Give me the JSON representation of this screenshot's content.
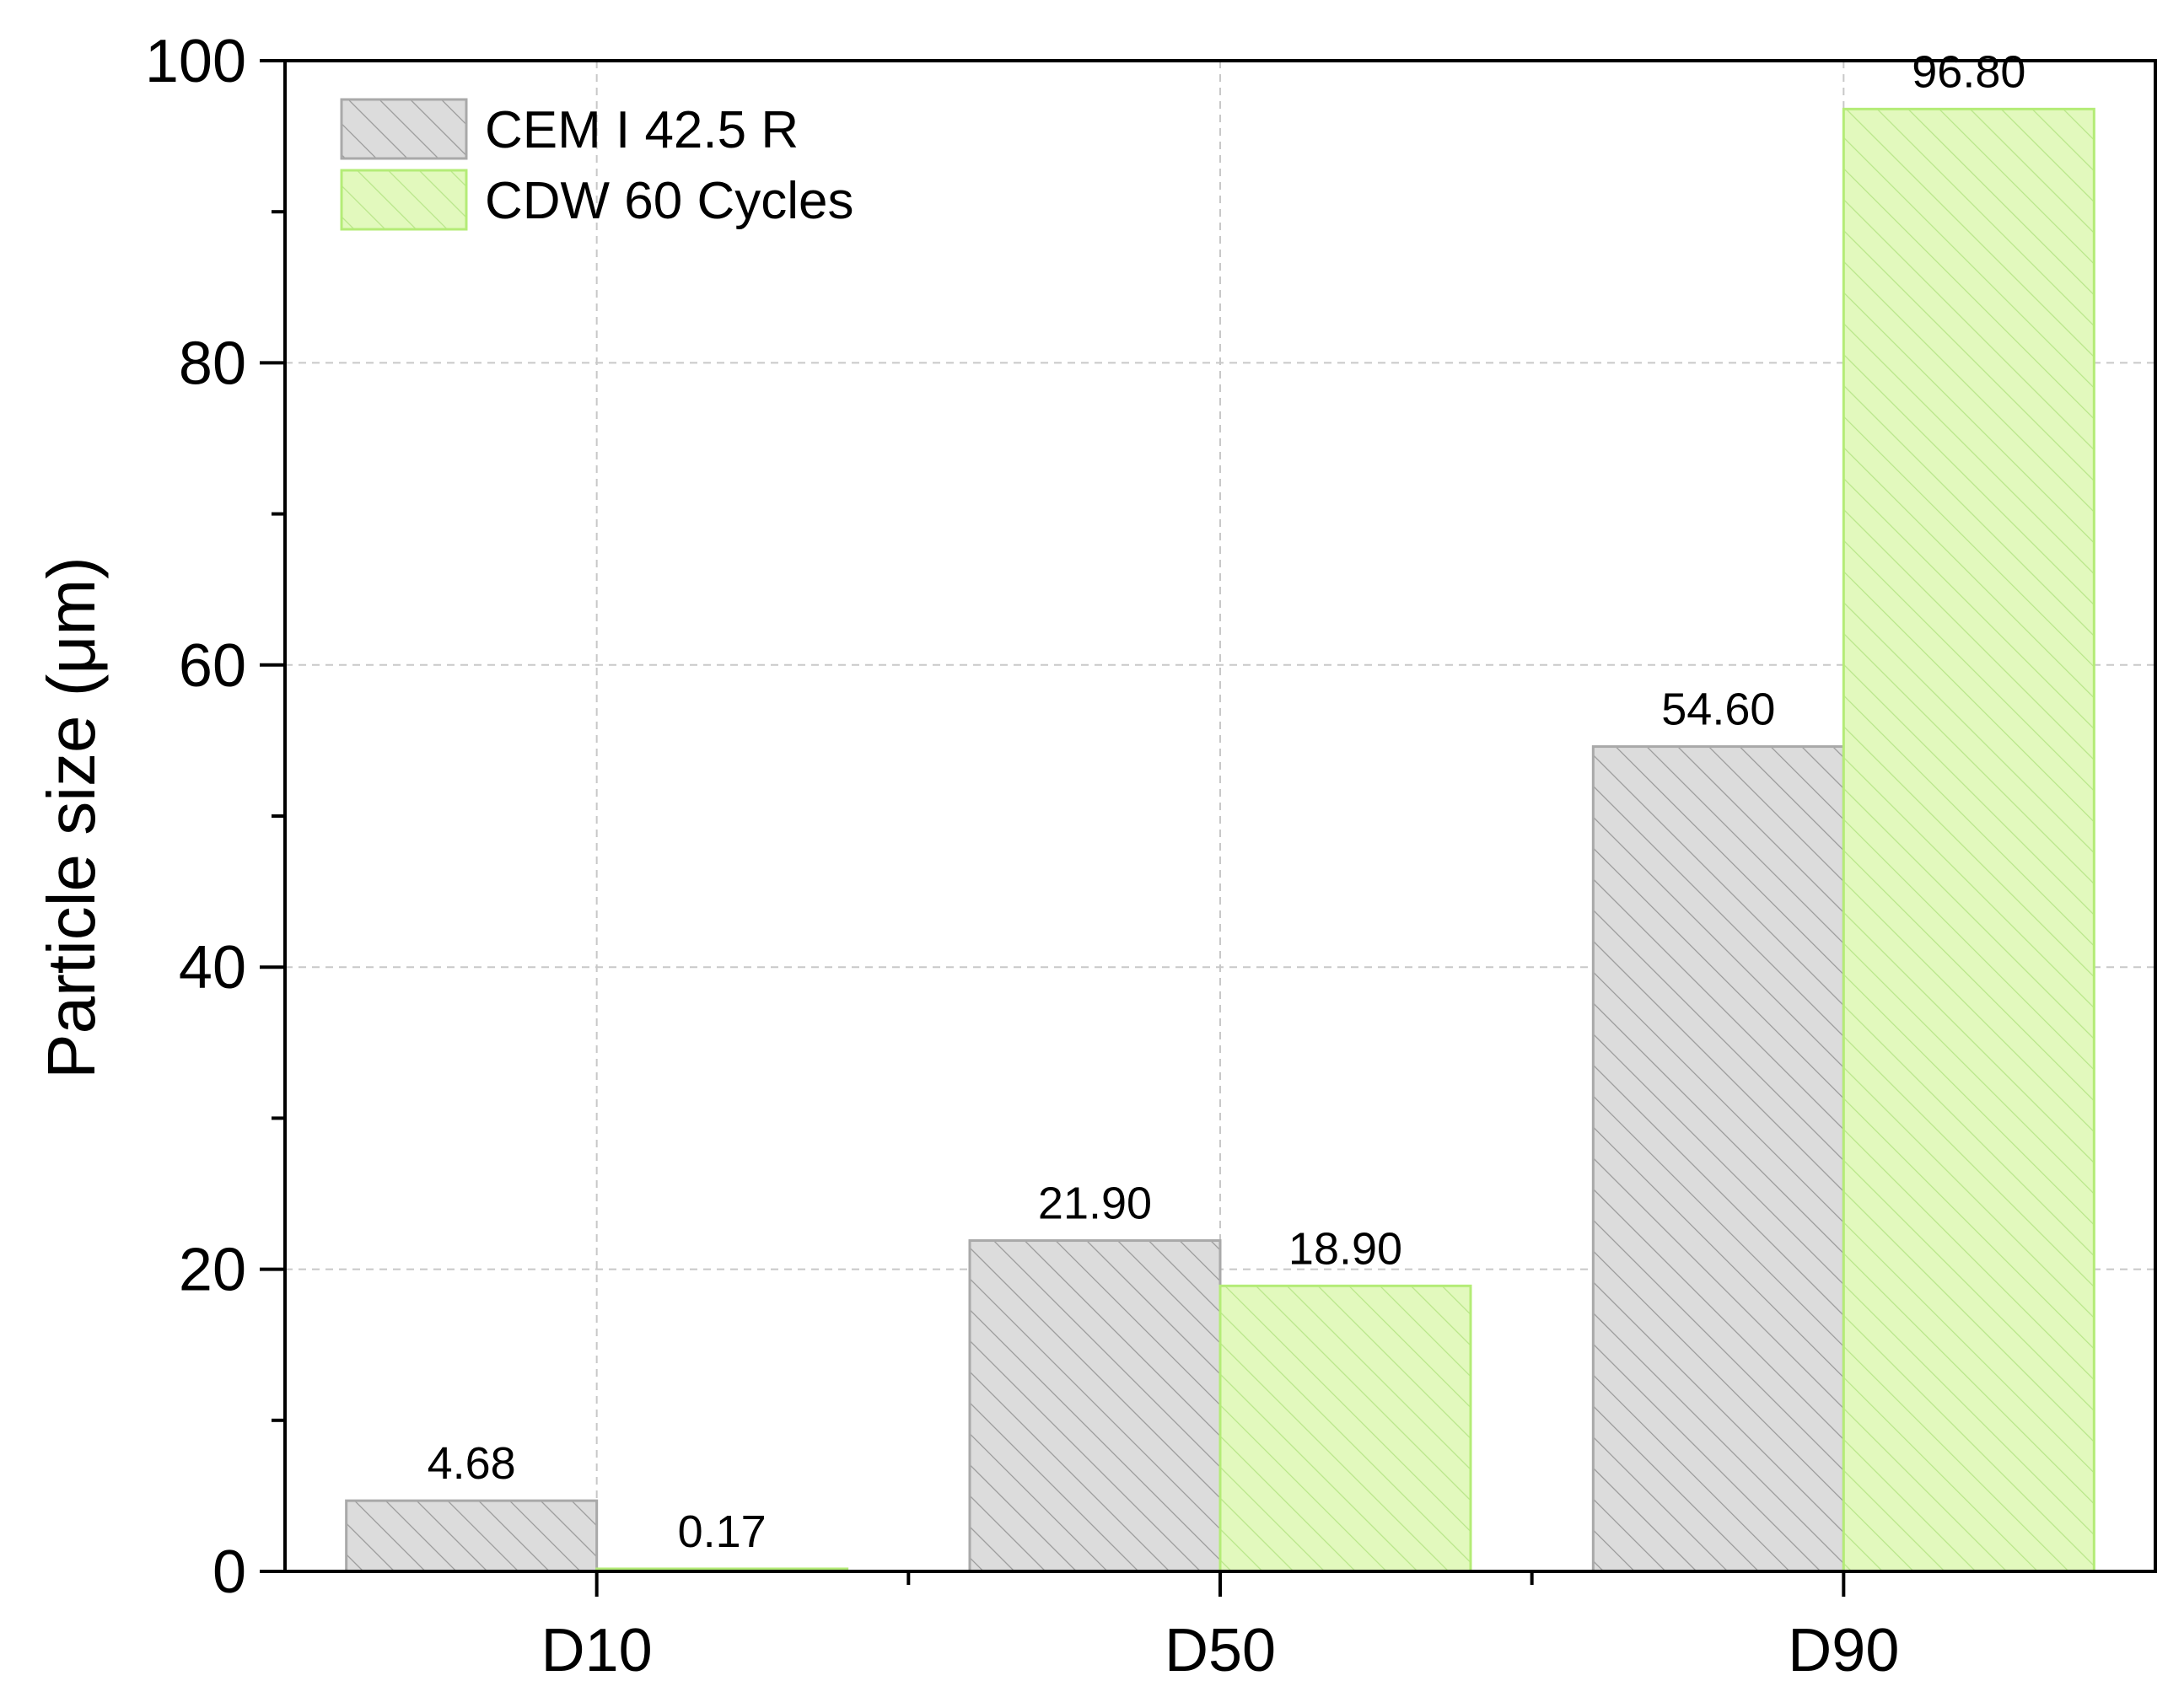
{
  "chart_data": {
    "type": "bar",
    "title": "",
    "xlabel": "",
    "ylabel": "Particle size (μm)",
    "categories": [
      "D10",
      "D50",
      "D90"
    ],
    "series": [
      {
        "name": "CEM I 42.5 R",
        "values": [
          4.68,
          21.9,
          54.6
        ],
        "labels": [
          "4.68",
          "21.90",
          "54.60"
        ],
        "fill": "#dcdcdc",
        "stroke": "#a9a9a9",
        "hatch": "#9a9a9a"
      },
      {
        "name": "CDW 60 Cycles",
        "values": [
          0.17,
          18.9,
          96.8
        ],
        "labels": [
          "0.17",
          "18.90",
          "96.80"
        ],
        "fill": "#e2f9bd",
        "stroke": "#b4ec77",
        "hatch": "#b9e68a"
      }
    ],
    "ylim": [
      0,
      100
    ],
    "yticks": [
      0,
      20,
      40,
      60,
      80,
      100
    ],
    "ytick_labels": [
      "0",
      "20",
      "40",
      "60",
      "80",
      "100"
    ],
    "grid": true,
    "legend_position": "top-left"
  }
}
